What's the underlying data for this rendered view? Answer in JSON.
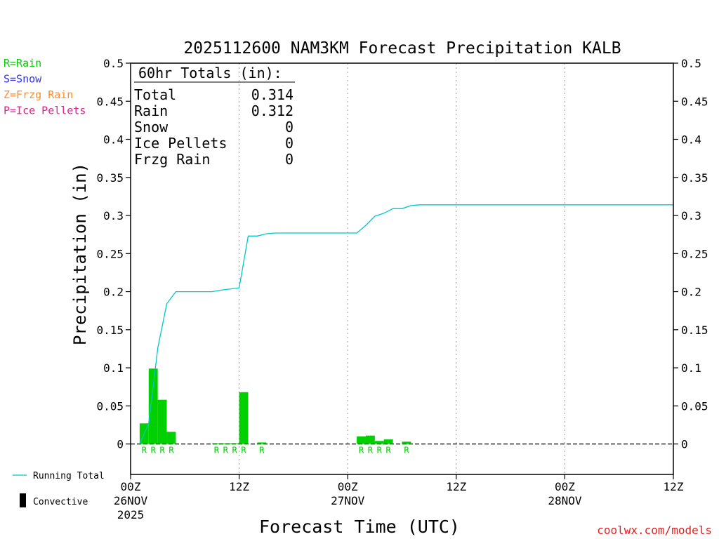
{
  "chart_data": {
    "type": "bar",
    "title": "2025112600 NAM3KM Forecast Precipitation KALB",
    "xlabel": "Forecast Time (UTC)",
    "ylabel": "Precipitation (in)",
    "xlim": [
      0,
      60
    ],
    "ylim": [
      -0.04,
      0.5
    ],
    "yticks": [
      "0.5",
      "0.45",
      "0.4",
      "0.35",
      "0.3",
      "0.25",
      "0.2",
      "0.15",
      "0.1",
      "0.05",
      "0"
    ],
    "ytick_values": [
      0.5,
      0.45,
      0.4,
      0.35,
      0.3,
      0.25,
      0.2,
      0.15,
      0.1,
      0.05,
      0
    ],
    "xticks": [
      {
        "hour": 0,
        "label": "00Z",
        "sub": "26NOV",
        "sub2": "2025"
      },
      {
        "hour": 12,
        "label": "12Z",
        "sub": "",
        "sub2": ""
      },
      {
        "hour": 24,
        "label": "00Z",
        "sub": "27NOV",
        "sub2": ""
      },
      {
        "hour": 36,
        "label": "12Z",
        "sub": "",
        "sub2": ""
      },
      {
        "hour": 48,
        "label": "00Z",
        "sub": "28NOV",
        "sub2": ""
      },
      {
        "hour": 60,
        "label": "12Z",
        "sub": "",
        "sub2": ""
      }
    ],
    "grid": "vertical-dotted",
    "bars": [
      {
        "hour": 2,
        "value": 0.027,
        "type": "R"
      },
      {
        "hour": 3,
        "value": 0.099,
        "type": "R"
      },
      {
        "hour": 4,
        "value": 0.058,
        "type": "R"
      },
      {
        "hour": 5,
        "value": 0.016,
        "type": "R"
      },
      {
        "hour": 10,
        "value": 0.001,
        "type": "R"
      },
      {
        "hour": 11,
        "value": 0.001,
        "type": "R"
      },
      {
        "hour": 12,
        "value": 0.001,
        "type": "R"
      },
      {
        "hour": 13,
        "value": 0.068,
        "type": "R"
      },
      {
        "hour": 15,
        "value": 0.002,
        "type": "R"
      },
      {
        "hour": 26,
        "value": 0.01,
        "type": "R"
      },
      {
        "hour": 27,
        "value": 0.011,
        "type": "R"
      },
      {
        "hour": 28,
        "value": 0.004,
        "type": "R"
      },
      {
        "hour": 29,
        "value": 0.006,
        "type": "R"
      },
      {
        "hour": 31,
        "value": 0.003,
        "type": "R"
      }
    ],
    "running_total": {
      "name": "Running Total",
      "points": [
        [
          1,
          0.0
        ],
        [
          2,
          0.027
        ],
        [
          3,
          0.126
        ],
        [
          4,
          0.184
        ],
        [
          5,
          0.2
        ],
        [
          9,
          0.2
        ],
        [
          10,
          0.202
        ],
        [
          12,
          0.205
        ],
        [
          13,
          0.273
        ],
        [
          14,
          0.273
        ],
        [
          15,
          0.276
        ],
        [
          16,
          0.277
        ],
        [
          25,
          0.277
        ],
        [
          26,
          0.287
        ],
        [
          27,
          0.299
        ],
        [
          28,
          0.303
        ],
        [
          29,
          0.309
        ],
        [
          30,
          0.309
        ],
        [
          31,
          0.313
        ],
        [
          32,
          0.314
        ],
        [
          60,
          0.314
        ]
      ]
    },
    "colors": {
      "rain": "#00d000",
      "snow": "#3030ff",
      "frzg_rain": "#ff8c28",
      "ice_pellets": "#e0208c",
      "running_total": "#00c8c8",
      "axis": "#000000",
      "credit": "#e02020"
    }
  },
  "legend_types": [
    {
      "text": "R=Rain",
      "color": "#00d000"
    },
    {
      "text": "S=Snow",
      "color": "#3030ff"
    },
    {
      "text": "Z=Frzg Rain",
      "color": "#ff8c28"
    },
    {
      "text": "P=Ice Pellets",
      "color": "#e0208c"
    }
  ],
  "totals": {
    "header": "60hr Totals (in):",
    "rows": [
      {
        "label": "Total",
        "value": "0.314"
      },
      {
        "label": "Rain",
        "value": "0.312"
      },
      {
        "label": "Snow",
        "value": "0"
      },
      {
        "label": "Ice Pellets",
        "value": "0"
      },
      {
        "label": "Frzg Rain",
        "value": "0"
      }
    ]
  },
  "bottom_legend": {
    "running_total": "Running Total",
    "convective": "Convective"
  },
  "credit": "coolwx.com/models"
}
